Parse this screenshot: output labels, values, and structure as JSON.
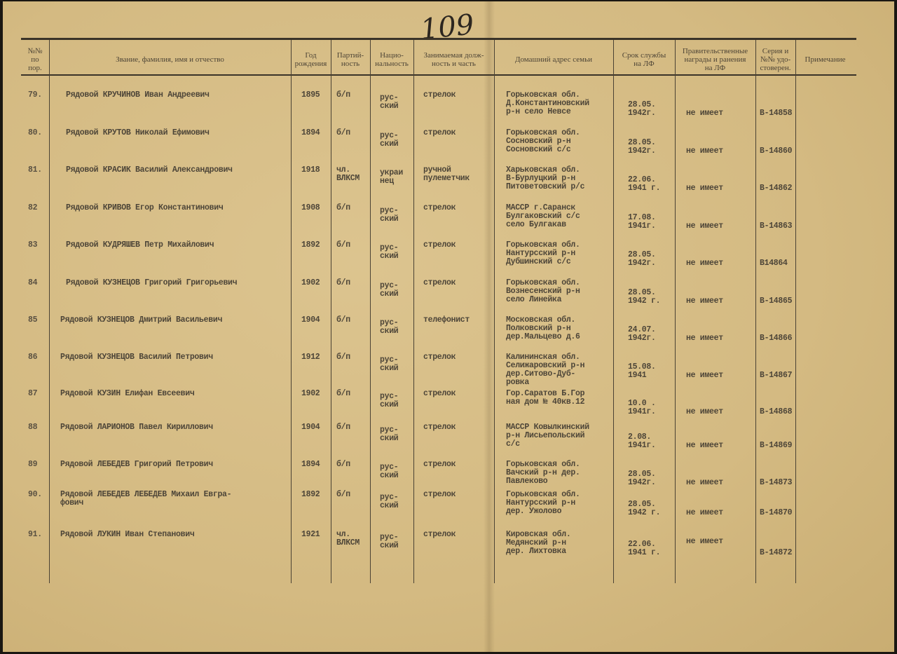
{
  "page_number": "109",
  "headers": [
    "№№\nпо\nпор.",
    "Звание, фамилия, имя и отчество",
    "Год\nрождения",
    "Партий-\nность",
    "Нацио-\nнальность",
    "Занимаемая долж-\nность и часть",
    "Домашний адрес семьи",
    "Срок службы\nна ЛФ",
    "Правительственные\nнаграды и ранения\nна ЛФ",
    "Серия и\n№№ удо-\nстоверен.",
    "Примечание"
  ],
  "rows": [
    {
      "num": "79.",
      "name": "Рядовой КРУЧИНОВ Иван Андреевич",
      "year": "1895",
      "party": "б/п",
      "nationality": "рус-\nский",
      "position": "стрелок",
      "address": "Горьковская обл.\nД.Константиновский\nр-н село Невсе",
      "service": "28.05.\n1942г.",
      "awards": "не имеет",
      "serial": "В-14858"
    },
    {
      "num": "80.",
      "name": "Рядовой КРУТОВ Николай Ефимович",
      "year": "1894",
      "party": "б/п",
      "nationality": "рус-\nский",
      "position": "стрелок",
      "address": "Горьковская обл.\nСосновский р-н\nСосновский с/с",
      "service": "28.05.\n1942г.",
      "awards": "не имеет",
      "serial": "В-14860"
    },
    {
      "num": "81.",
      "name": "Рядовой КРАСИК Василий Александрович",
      "year": "1918",
      "party": "чл.\nВЛКСМ",
      "nationality": "украи\nнец",
      "position": "ручной\nпулеметчик",
      "address": "Харьковская обл.\nВ-Бурлуцкий р-н\nПитоветовский р/с",
      "service": "22.06.\n1941 г.",
      "awards": "не имеет",
      "serial": "В-14862"
    },
    {
      "num": "82",
      "name": "Рядовой КРИВОВ Егор Константинович",
      "year": "1908",
      "party": "б/п",
      "nationality": "рус-\nский",
      "position": "стрелок",
      "address": "МАССР г.Саранск\nБулгаковский с/с\nсело Булгакав",
      "service": "17.08.\n1941г.",
      "awards": "не имеет",
      "serial": "В-14863"
    },
    {
      "num": "83",
      "name": "Рядовой КУДРЯШЕВ Петр Михайлович",
      "year": "1892",
      "party": "б/п",
      "nationality": "рус-\nский",
      "position": "стрелок",
      "address": "Горьковская обл.\nНантурсский р-н\nДубшинский с/с",
      "service": "28.05.\n1942г.",
      "awards": "не имеет",
      "serial": "В14864"
    },
    {
      "num": "84",
      "name": "Рядовой КУЗНЕЦОВ Григорий Григорьевич",
      "year": "1902",
      "party": "б/п",
      "nationality": "рус-\nский",
      "position": "стрелок",
      "address": "Горьковская обл.\nВознесенский р-н\nсело Линейка",
      "service": "28.05.\n1942 г.",
      "awards": "не имеет",
      "serial": "В-14865"
    },
    {
      "num": "85",
      "name": "Рядовой КУЗНЕЦОВ Дмитрий Васильевич",
      "year": "1904",
      "party": "б/п",
      "nationality": "рус-\nский",
      "position": "телефонист",
      "address": "Московская обл.\nПолковский р-н\nдер.Мальцево д.6",
      "service": "24.07.\n1942г.",
      "awards": "не имеет",
      "serial": "В-14866"
    },
    {
      "num": "86",
      "name": "Рядовой КУЗНЕЦОВ Василий Петрович",
      "year": "1912",
      "party": "б/п",
      "nationality": "рус-\nский",
      "position": "стрелок",
      "address": "Калининская обл.\nСелижаровский р-н\nдер.Ситово-Дуб-\nровка",
      "service": "15.08.\n1941",
      "awards": "не имеет",
      "serial": "В-14867"
    },
    {
      "num": "87",
      "name": "Рядовой КУЗИН Елифан Евсеевич",
      "year": "1902",
      "party": "б/п",
      "nationality": "рус-\nский",
      "position": "стрелок",
      "address": "Гор.Саратов Б.Гор\nная дом № 40кв.12",
      "service": "10.0 .\n1941г.",
      "awards": "не имеет",
      "serial": "В-14868"
    },
    {
      "num": "88",
      "name": "Рядовой ЛАРИОНОВ Павел Кириллович",
      "year": "1904",
      "party": "б/п",
      "nationality": "рус-\nский",
      "position": "стрелок",
      "address": "МАССР Ковылкинский\nр-н Лисьепольский\nс/с",
      "service": "2.08.\n1941г.",
      "awards": "не имеет",
      "serial": "В-14869"
    },
    {
      "num": "89",
      "name": "Рядовой ЛЕБЕДЕВ Григорий Петрович",
      "year": "1894",
      "party": "б/п",
      "nationality": "рус-\nский",
      "position": "стрелок",
      "address": "Горьковская обл.\nВачский р-н дер.\nПавлеково",
      "service": "28.05.\n1942г.",
      "awards": "не имеет",
      "serial": "В-14873"
    },
    {
      "num": "90.",
      "name": "Рядовой ЛЕБЕДЕВ ЛЕБЕДЕВ Михаил Евгра-\nфович",
      "year": "1892",
      "party": "б/п",
      "nationality": "рус-\nский",
      "position": "стрелок",
      "address": "Горьковская обл.\nНантурсский р-н\nдер. Ужолово",
      "service": "28.05.\n1942 г.",
      "awards": "не имеет",
      "serial": "В-14870"
    },
    {
      "num": "91.",
      "name": "Рядовой ЛУКИН Иван Степанович",
      "year": "1921",
      "party": "чл.\nВЛКСМ",
      "nationality": "рус-\nский",
      "position": "стрелок",
      "address": "Кировская обл.\nМедянский р-н\nдер. Лихтовка",
      "service": "22.06.\n1941 г.",
      "awards": "не имеет",
      "serial": "В-14872"
    }
  ],
  "colors": {
    "paper": "#d6bd86",
    "ink": "#4d4538"
  }
}
